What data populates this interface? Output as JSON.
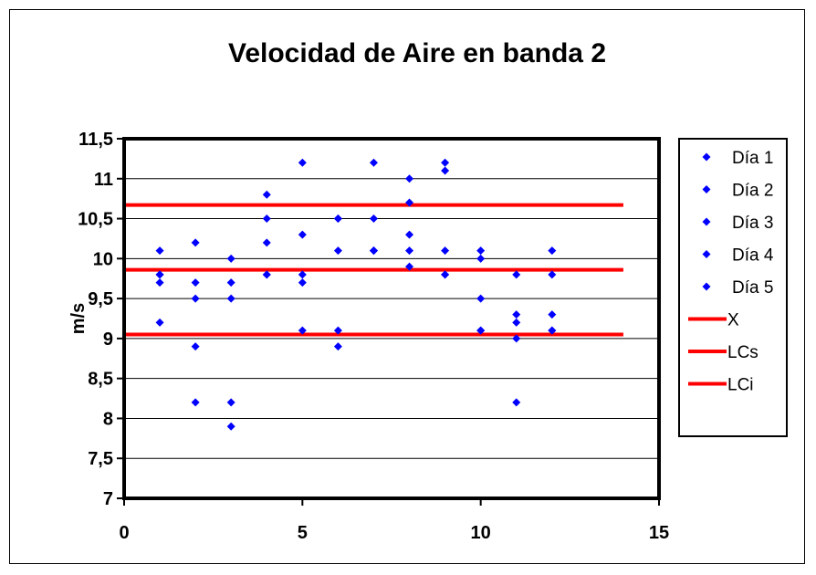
{
  "chart_data": {
    "type": "scatter",
    "title": "Velocidad de Aire en banda 2",
    "xlabel": "",
    "ylabel": "m/s",
    "xlim": [
      0,
      15
    ],
    "ylim": [
      7,
      11.5
    ],
    "xticks": [
      0,
      5,
      10,
      15
    ],
    "xtick_labels": [
      "0",
      "5",
      "10",
      "15"
    ],
    "yticks": [
      7,
      7.5,
      8,
      8.5,
      9,
      9.5,
      10,
      10.5,
      11,
      11.5
    ],
    "ytick_labels": [
      "7",
      "7,5",
      "8",
      "8,5",
      "9",
      "9,5",
      "10",
      "10,5",
      "11",
      "11,5"
    ],
    "grid": "horizontal",
    "legend_position": "right",
    "series": [
      {
        "name": "Día 1",
        "kind": "points",
        "color": "#0000ff",
        "marker": "diamond",
        "x": [
          1,
          2,
          3,
          4,
          5,
          6,
          7,
          8,
          9,
          10,
          11,
          12
        ],
        "y": [
          10.1,
          10.2,
          10.0,
          10.8,
          11.2,
          10.5,
          11.2,
          11.0,
          11.2,
          10.1,
          9.8,
          10.1
        ]
      },
      {
        "name": "Día 2",
        "kind": "points",
        "color": "#0000ff",
        "marker": "diamond",
        "x": [
          1,
          2,
          3,
          4,
          5,
          6,
          7,
          8,
          9,
          10,
          11,
          12
        ],
        "y": [
          9.8,
          9.7,
          9.7,
          10.5,
          10.3,
          10.5,
          10.5,
          10.7,
          11.1,
          10.0,
          9.3,
          9.8
        ]
      },
      {
        "name": "Día 3",
        "kind": "points",
        "color": "#0000ff",
        "marker": "diamond",
        "x": [
          1,
          2,
          3,
          4,
          5,
          6,
          7,
          8,
          9,
          10,
          11,
          12
        ],
        "y": [
          9.7,
          9.5,
          9.5,
          10.2,
          9.8,
          10.1,
          10.1,
          10.3,
          10.1,
          9.5,
          9.2,
          9.3
        ]
      },
      {
        "name": "Día 4",
        "kind": "points",
        "color": "#0000ff",
        "marker": "diamond",
        "x": [
          1,
          2,
          3,
          4,
          5,
          6,
          7,
          8,
          9,
          10,
          11,
          12
        ],
        "y": [
          9.2,
          8.9,
          8.2,
          9.8,
          9.7,
          9.1,
          10.1,
          10.1,
          9.8,
          9.1,
          9.0,
          9.1
        ]
      },
      {
        "name": "Día 5",
        "kind": "points",
        "color": "#0000ff",
        "marker": "diamond",
        "x": [
          1,
          2,
          3,
          4,
          5,
          6,
          7,
          8,
          9,
          10,
          11,
          12
        ],
        "y": [
          9.8,
          8.2,
          7.9,
          9.8,
          9.1,
          8.9,
          10.1,
          9.9,
          9.8,
          9.1,
          8.2,
          9.1
        ]
      },
      {
        "name": "X",
        "kind": "line",
        "color": "#ff0000",
        "x": [
          0,
          14
        ],
        "y": [
          9.86,
          9.86
        ]
      },
      {
        "name": "LCs",
        "kind": "line",
        "color": "#ff0000",
        "x": [
          0,
          14
        ],
        "y": [
          10.67,
          10.67
        ]
      },
      {
        "name": "LCi",
        "kind": "line",
        "color": "#ff0000",
        "x": [
          0,
          14
        ],
        "y": [
          9.05,
          9.05
        ]
      }
    ]
  }
}
